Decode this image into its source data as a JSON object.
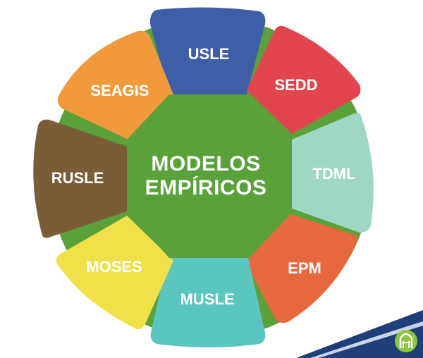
{
  "diagram": {
    "center": {
      "line1": "MODELOS",
      "line2": "EMPÍRICOS",
      "color": "#5aa13a"
    },
    "ring_color": "#5aa13a",
    "segments": [
      {
        "id": "usle",
        "label": "USLE",
        "color": "#3f5ea8"
      },
      {
        "id": "sedd",
        "label": "SEDD",
        "color": "#e2454e"
      },
      {
        "id": "tdml",
        "label": "TDML",
        "color": "#9fd7c4"
      },
      {
        "id": "epm",
        "label": "EPM",
        "color": "#e8683d"
      },
      {
        "id": "musle",
        "label": "MUSLE",
        "color": "#5bc5c0"
      },
      {
        "id": "moses",
        "label": "MOSES",
        "color": "#f0e04a"
      },
      {
        "id": "rusle",
        "label": "RUSLE",
        "color": "#7a5c36"
      },
      {
        "id": "seagis",
        "label": "SEAGIS",
        "color": "#f09a3c"
      }
    ]
  },
  "brand": {
    "logo_icon": "h-arch-logo-icon",
    "logo_color": "#8cc63f",
    "swoosh_color": "#1f3f78"
  }
}
